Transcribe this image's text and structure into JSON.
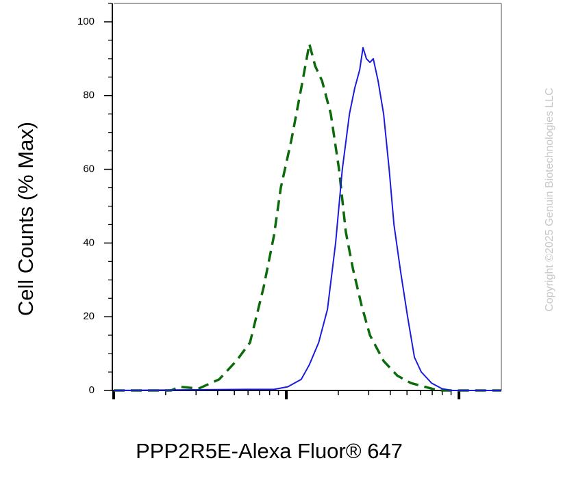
{
  "chart_data": {
    "type": "line",
    "y_label": "Cell Counts (% Max)",
    "x_label": "PPP2R5E-Alexa Fluor® 647",
    "copyright": "Copyright ©2025 Genuin Biotechnologies LLC",
    "x_log": true,
    "xlim": [
      1,
      176
    ],
    "ylim": [
      0,
      105
    ],
    "yticks": [
      0,
      20,
      40,
      60,
      80,
      100
    ],
    "series": [
      {
        "color": "#0b6b0b",
        "dashed": true,
        "x": [
          1,
          2.15,
          2.4,
          3.1,
          4.08,
          5.13,
          6.16,
          7.39,
          8.48,
          9.29,
          10.7,
          12.2,
          13.6,
          14.7,
          16.1,
          18.1,
          20.2,
          22.1,
          24.3,
          27.3,
          30.5,
          36.6,
          44.0,
          52.7,
          63.4,
          76.0,
          176
        ],
        "values": [
          0,
          0,
          1,
          0.5,
          3,
          8,
          13,
          28,
          42,
          55,
          68,
          82,
          94,
          88,
          84,
          75,
          60,
          43,
          33,
          23,
          15,
          8,
          4,
          2,
          1,
          0,
          0
        ]
      },
      {
        "color": "#1a1adc",
        "dashed": false,
        "x": [
          1,
          5.89,
          8.48,
          10.2,
          12.2,
          13.6,
          15.4,
          17.3,
          19.3,
          21.1,
          23.2,
          24.9,
          26.6,
          27.8,
          29.1,
          30.5,
          31.9,
          34.0,
          36.6,
          39.4,
          42.0,
          46.0,
          50.4,
          55.2,
          60.5,
          69.4,
          79.6,
          91.2,
          176
        ],
        "values": [
          0,
          0.3,
          0.3,
          1,
          3,
          7,
          13,
          22,
          40,
          60,
          75,
          82,
          87,
          93,
          90,
          89,
          90,
          84,
          75,
          60,
          45,
          32,
          20,
          9,
          5,
          2,
          0.5,
          0,
          0
        ]
      }
    ]
  }
}
